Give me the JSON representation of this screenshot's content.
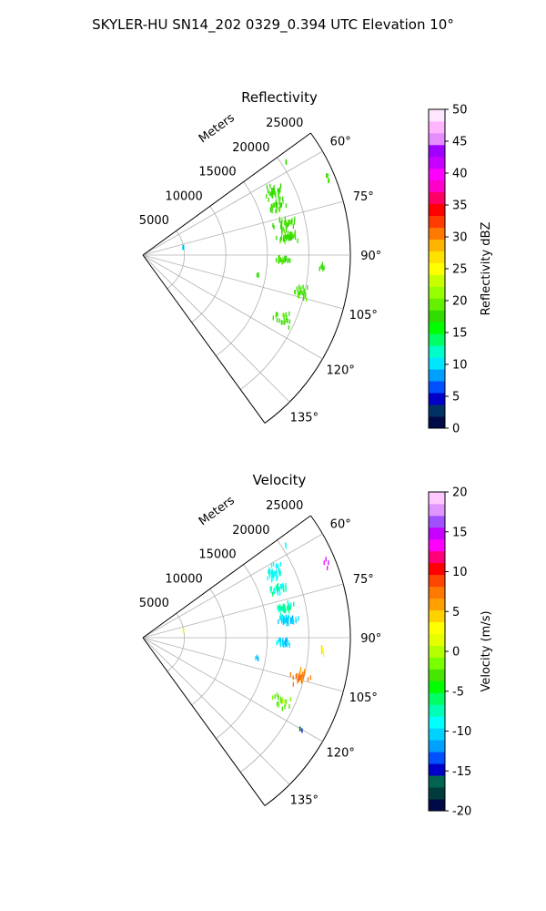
{
  "suptitle": "SKYLER-HU  SN14_202  0329_0.394 UTC Elevation 10°",
  "colors": {
    "reflectivity_colormap": [
      "#000a46",
      "#003264",
      "#0000c8",
      "#0050ff",
      "#00a0ff",
      "#00e6ff",
      "#00ffc8",
      "#00ff64",
      "#00ff00",
      "#32dc00",
      "#64f000",
      "#96ff00",
      "#c8ff00",
      "#ffff00",
      "#ffe100",
      "#ffb400",
      "#ff7800",
      "#ff3c00",
      "#ff0000",
      "#ff0064",
      "#ff00c8",
      "#ff00ff",
      "#c800ff",
      "#a000ff",
      "#e68cff",
      "#ffb4ff",
      "#ffe6ff"
    ],
    "velocity_colormap": [
      "#000a46",
      "#003c3c",
      "#006450",
      "#0000c8",
      "#0050ff",
      "#00a0ff",
      "#00d2ff",
      "#00ffff",
      "#00ffb4",
      "#00ff64",
      "#00ff00",
      "#46e600",
      "#78ff00",
      "#b4ff00",
      "#e6ff00",
      "#ffff00",
      "#ffd200",
      "#ffa000",
      "#ff7800",
      "#ff4600",
      "#ff0000",
      "#ff0078",
      "#ff00ff",
      "#c800ff",
      "#a050ff",
      "#e196ff",
      "#ffc8ff"
    ],
    "grid": "#b0b0b0"
  },
  "chart_data": [
    {
      "type": "polar-scatter",
      "title": "Reflectivity",
      "radial_label": "Meters",
      "radial_ticks": [
        5000,
        10000,
        15000,
        20000,
        25000
      ],
      "rlim": [
        0,
        25000
      ],
      "theta_ticks": [
        60,
        75,
        90,
        105,
        120,
        135
      ],
      "theta_tick_labels": [
        "60°",
        "75°",
        "90°",
        "105°",
        "120°",
        "135°"
      ],
      "theta_range_deg": [
        54,
        144
      ],
      "colorbar": {
        "label": "Reflectivity dBZ",
        "range": [
          0,
          50
        ],
        "ticks": [
          0,
          5,
          10,
          15,
          20,
          25,
          30,
          35,
          40,
          45,
          50
        ]
      },
      "clusters": [
        {
          "theta": 64,
          "r": 17500,
          "dtheta": 4,
          "dr": 1500,
          "n": 35,
          "value": 18
        },
        {
          "theta": 70,
          "r": 17200,
          "dtheta": 3,
          "dr": 1500,
          "n": 28,
          "value": 18
        },
        {
          "theta": 78,
          "r": 17500,
          "dtheta": 3,
          "dr": 1700,
          "n": 35,
          "value": 18
        },
        {
          "theta": 83,
          "r": 17600,
          "dtheta": 2.5,
          "dr": 1800,
          "n": 40,
          "value": 18
        },
        {
          "theta": 92,
          "r": 16800,
          "dtheta": 2,
          "dr": 1200,
          "n": 25,
          "value": 18
        },
        {
          "theta": 94,
          "r": 21700,
          "dtheta": 2,
          "dr": 400,
          "n": 6,
          "value": 18
        },
        {
          "theta": 104,
          "r": 19500,
          "dtheta": 4,
          "dr": 1500,
          "n": 25,
          "value": 18
        },
        {
          "theta": 115,
          "r": 18500,
          "dtheta": 4,
          "dr": 1500,
          "n": 22,
          "value": 18
        },
        {
          "theta": 68,
          "r": 24000,
          "dtheta": 2,
          "dr": 500,
          "n": 4,
          "value": 18
        },
        {
          "theta": 57,
          "r": 20500,
          "dtheta": 1,
          "dr": 300,
          "n": 2,
          "value": 18
        },
        {
          "theta": 80,
          "r": 5000,
          "dtheta": 2,
          "dr": 200,
          "n": 2,
          "value": 10
        },
        {
          "theta": 100,
          "r": 14000,
          "dtheta": 1,
          "dr": 300,
          "n": 3,
          "value": 18
        }
      ]
    },
    {
      "type": "polar-scatter",
      "title": "Velocity",
      "radial_label": "Meters",
      "radial_ticks": [
        5000,
        10000,
        15000,
        20000,
        25000
      ],
      "rlim": [
        0,
        25000
      ],
      "theta_ticks": [
        60,
        75,
        90,
        105,
        120,
        135
      ],
      "theta_tick_labels": [
        "60°",
        "75°",
        "90°",
        "105°",
        "120°",
        "135°"
      ],
      "theta_range_deg": [
        54,
        144
      ],
      "colorbar": {
        "label": "Velocity (m/s)",
        "range": [
          -20,
          20
        ],
        "ticks": [
          -20,
          -15,
          -10,
          -5,
          0,
          5,
          10,
          15,
          20
        ]
      },
      "clusters": [
        {
          "theta": 64,
          "r": 17500,
          "dtheta": 4,
          "dr": 1500,
          "n": 35,
          "value": -9
        },
        {
          "theta": 70,
          "r": 17200,
          "dtheta": 3,
          "dr": 1500,
          "n": 28,
          "value": -8
        },
        {
          "theta": 78,
          "r": 17500,
          "dtheta": 3,
          "dr": 1700,
          "n": 35,
          "value": -7
        },
        {
          "theta": 83,
          "r": 17600,
          "dtheta": 2.5,
          "dr": 1800,
          "n": 40,
          "value": -10
        },
        {
          "theta": 92,
          "r": 16800,
          "dtheta": 2,
          "dr": 1200,
          "n": 25,
          "value": -10
        },
        {
          "theta": 94,
          "r": 21700,
          "dtheta": 2,
          "dr": 400,
          "n": 6,
          "value": 3
        },
        {
          "theta": 104,
          "r": 19500,
          "dtheta": 4,
          "dr": 1500,
          "n": 25,
          "value": 7
        },
        {
          "theta": 115,
          "r": 18500,
          "dtheta": 4,
          "dr": 1500,
          "n": 22,
          "value": -2
        },
        {
          "theta": 120,
          "r": 22000,
          "dtheta": 1,
          "dr": 300,
          "n": 3,
          "value": -16
        },
        {
          "theta": 68,
          "r": 24000,
          "dtheta": 2,
          "dr": 500,
          "n": 4,
          "value": 14
        },
        {
          "theta": 57,
          "r": 20500,
          "dtheta": 1,
          "dr": 300,
          "n": 2,
          "value": -9
        },
        {
          "theta": 80,
          "r": 5000,
          "dtheta": 2,
          "dr": 200,
          "n": 2,
          "value": 2
        },
        {
          "theta": 100,
          "r": 14000,
          "dtheta": 1,
          "dr": 300,
          "n": 3,
          "value": -10
        }
      ]
    }
  ]
}
